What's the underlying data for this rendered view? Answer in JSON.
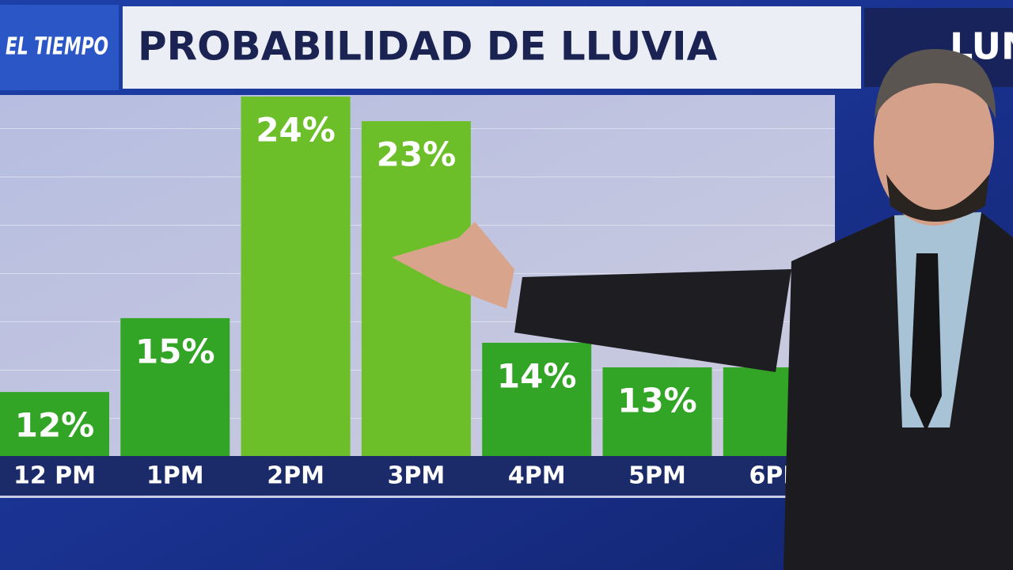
{
  "chart_data": {
    "type": "bar",
    "title": "PROBABILIDAD DE LLUVIA",
    "brand": "EL TIEMPO",
    "day": "LUN",
    "categories": [
      "12 PM",
      "1PM",
      "2PM",
      "3PM",
      "4PM",
      "5PM",
      "6PM"
    ],
    "values": [
      12,
      15,
      24,
      23,
      14,
      13,
      13
    ],
    "value_labels": [
      "12%",
      "15%",
      "24%",
      "23%",
      "14%",
      "13%",
      null
    ],
    "colors": [
      "#33a526",
      "#33a526",
      "#6cbf28",
      "#6cbf28",
      "#33a526",
      "#33a526",
      "#33a526"
    ],
    "ylim": [
      9.4,
      24
    ]
  }
}
